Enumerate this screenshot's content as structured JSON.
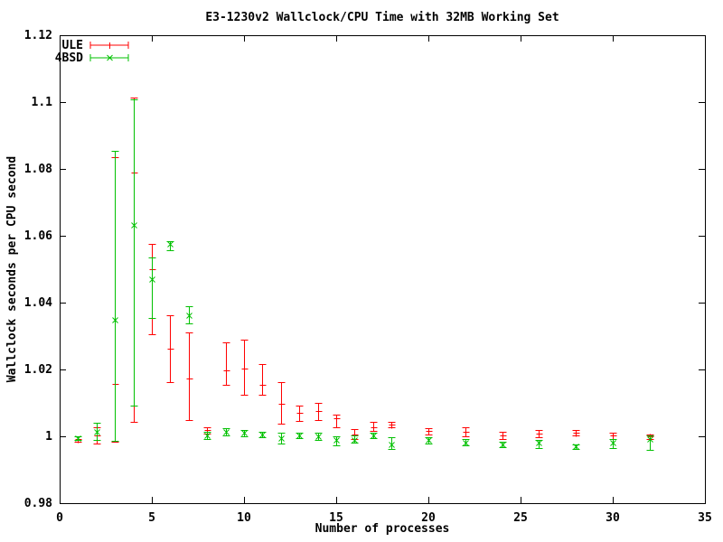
{
  "chart_data": {
    "type": "scatter",
    "subtype": "yerrorbars",
    "title": "E3-1230v2 Wallclock/CPU Time with 32MB Working Set",
    "xlabel": "Number of processes",
    "ylabel": "Wallclock seconds per CPU second",
    "xlim": [
      0,
      35
    ],
    "ylim": [
      0.98,
      1.12
    ],
    "xticks": [
      0,
      5,
      10,
      15,
      20,
      25,
      30,
      35
    ],
    "xtick_labels": [
      "0",
      "5",
      "10",
      "15",
      "20",
      "25",
      "30",
      "35"
    ],
    "yticks": [
      0.98,
      1.0,
      1.02,
      1.04,
      1.06,
      1.08,
      1.1,
      1.12
    ],
    "ytick_labels": [
      "0.98",
      "1",
      "1.02",
      "1.04",
      "1.06",
      "1.08",
      "1.1",
      "1.12"
    ],
    "grid": false,
    "legend_position": "top-left",
    "background_color": "#ffffff",
    "axis_color": "#000000",
    "series": [
      {
        "name": "ULE",
        "color": "#ff0000",
        "marker": "plus",
        "points_format": [
          "x",
          "y",
          "ylow",
          "yhigh"
        ],
        "points": [
          [
            1,
            0.9993,
            0.9985,
            1.0
          ],
          [
            2,
            1.0002,
            0.9978,
            1.0026
          ],
          [
            3,
            1.0158,
            0.9983,
            1.0834
          ],
          [
            4,
            1.079,
            1.0042,
            1.1014
          ],
          [
            5,
            1.05,
            1.0305,
            1.0575
          ],
          [
            6,
            1.0263,
            1.0161,
            1.0362
          ],
          [
            7,
            1.0174,
            1.0048,
            1.0311
          ],
          [
            8,
            1.0018,
            1.0007,
            1.0028
          ],
          [
            9,
            1.0198,
            1.0153,
            1.0282
          ],
          [
            10,
            1.0204,
            1.0123,
            1.029
          ],
          [
            11,
            1.0155,
            1.0123,
            1.0215
          ],
          [
            12,
            1.0096,
            1.0037,
            1.0163
          ],
          [
            13,
            1.0069,
            1.0045,
            1.0091
          ],
          [
            14,
            1.0077,
            1.0048,
            1.0101
          ],
          [
            15,
            1.0053,
            1.0026,
            1.0064
          ],
          [
            16,
            1.0005,
            0.9993,
            1.0021
          ],
          [
            17,
            1.0026,
            1.0015,
            1.0042
          ],
          [
            18,
            1.0034,
            1.0026,
            1.0042
          ],
          [
            20,
            1.0015,
            1.0005,
            1.0023
          ],
          [
            22,
            1.0013,
            0.9999,
            1.0026
          ],
          [
            24,
            1.0002,
            0.9991,
            1.0013
          ],
          [
            26,
            1.0007,
            0.9997,
            1.0018
          ],
          [
            28,
            1.001,
            1.0002,
            1.0018
          ],
          [
            30,
            1.0002,
            0.9993,
            1.0012
          ],
          [
            32,
            0.9999,
            0.9993,
            1.0005
          ]
        ]
      },
      {
        "name": "4BSD",
        "color": "#00c000",
        "marker": "cross",
        "points_format": [
          "x",
          "y",
          "ylow",
          "yhigh"
        ],
        "points": [
          [
            1,
            0.9995,
            0.999,
            1.0
          ],
          [
            2,
            1.0013,
            0.9988,
            1.004
          ],
          [
            3,
            1.0349,
            0.9986,
            1.0855
          ],
          [
            4,
            1.0632,
            1.0091,
            1.1007
          ],
          [
            5,
            1.047,
            1.0354,
            1.0535
          ],
          [
            6,
            1.0575,
            1.0557,
            1.0585
          ],
          [
            7,
            1.0362,
            1.0338,
            1.0389
          ],
          [
            8,
            1.0002,
            0.9991,
            1.0013
          ],
          [
            9,
            1.0013,
            1.0002,
            1.0023
          ],
          [
            10,
            1.001,
            1.0,
            1.0019
          ],
          [
            11,
            1.0005,
            0.9996,
            1.0013
          ],
          [
            12,
            0.9994,
            0.9978,
            1.001
          ],
          [
            13,
            1.0002,
            0.9994,
            1.001
          ],
          [
            14,
            0.9999,
            0.9988,
            1.001
          ],
          [
            15,
            0.9988,
            0.9972,
            0.9999
          ],
          [
            16,
            0.999,
            0.998,
            1.0002
          ],
          [
            17,
            1.0002,
            0.9994,
            1.001
          ],
          [
            18,
            0.9975,
            0.9962,
            0.9997
          ],
          [
            20,
            0.9988,
            0.9978,
            0.9997
          ],
          [
            22,
            0.998,
            0.9972,
            0.9991
          ],
          [
            24,
            0.9975,
            0.9968,
            0.9984
          ],
          [
            26,
            0.998,
            0.9964,
            0.9989
          ],
          [
            28,
            0.9969,
            0.9962,
            0.9977
          ],
          [
            30,
            0.998,
            0.9966,
            0.9991
          ],
          [
            32,
            0.9991,
            0.9959,
            1.0002
          ]
        ]
      }
    ]
  }
}
